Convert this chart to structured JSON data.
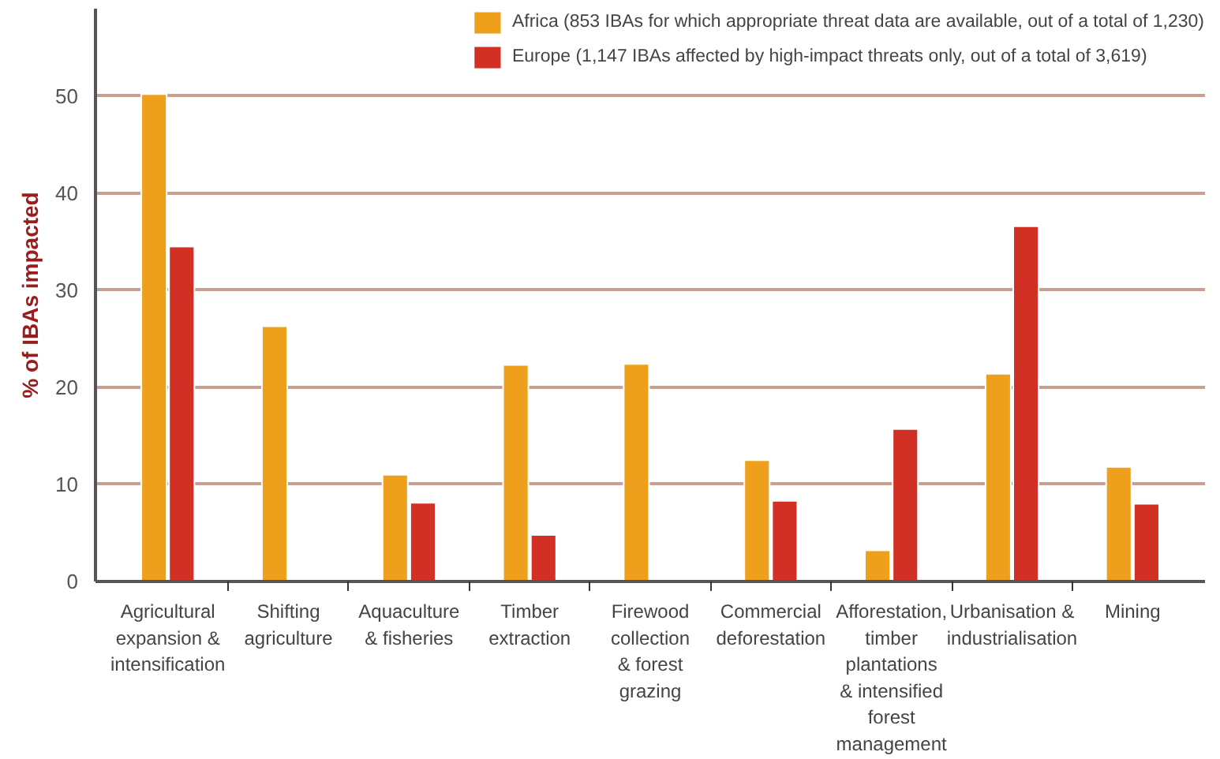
{
  "chart_data": {
    "type": "bar",
    "ylabel": "% of IBAs impacted",
    "categories": [
      "Agricultural\nexpansion &\nintensification",
      "Shifting\nagriculture",
      "Aquaculture\n& fisheries",
      "Timber\nextraction",
      "Firewood\ncollection\n& forest\ngrazing",
      "Commercial\ndeforestation",
      "Afforestation,\ntimber\nplantations\n& intensified\nforest\nmanagement",
      "Urbanisation &\nindustrialisation",
      "Mining"
    ],
    "series": [
      {
        "name": "Africa (853 IBAs for which appropriate threat data are available, out of a total of 1,230)",
        "color": "#eea01c",
        "values": [
          50.2,
          26.3,
          11.0,
          22.3,
          22.4,
          12.5,
          3.2,
          21.4,
          11.8
        ]
      },
      {
        "name": "Europe (1,147 IBAs affected by high-impact threats only, out of a total of 3,619)",
        "color": "#d22f25",
        "values": [
          34.5,
          null,
          8.1,
          4.8,
          null,
          8.3,
          15.7,
          36.6,
          8.0
        ]
      }
    ],
    "ylim": [
      0,
      59
    ],
    "yticks": [
      0,
      10,
      20,
      30,
      40,
      50
    ],
    "grid": "y",
    "legend": "top right"
  }
}
